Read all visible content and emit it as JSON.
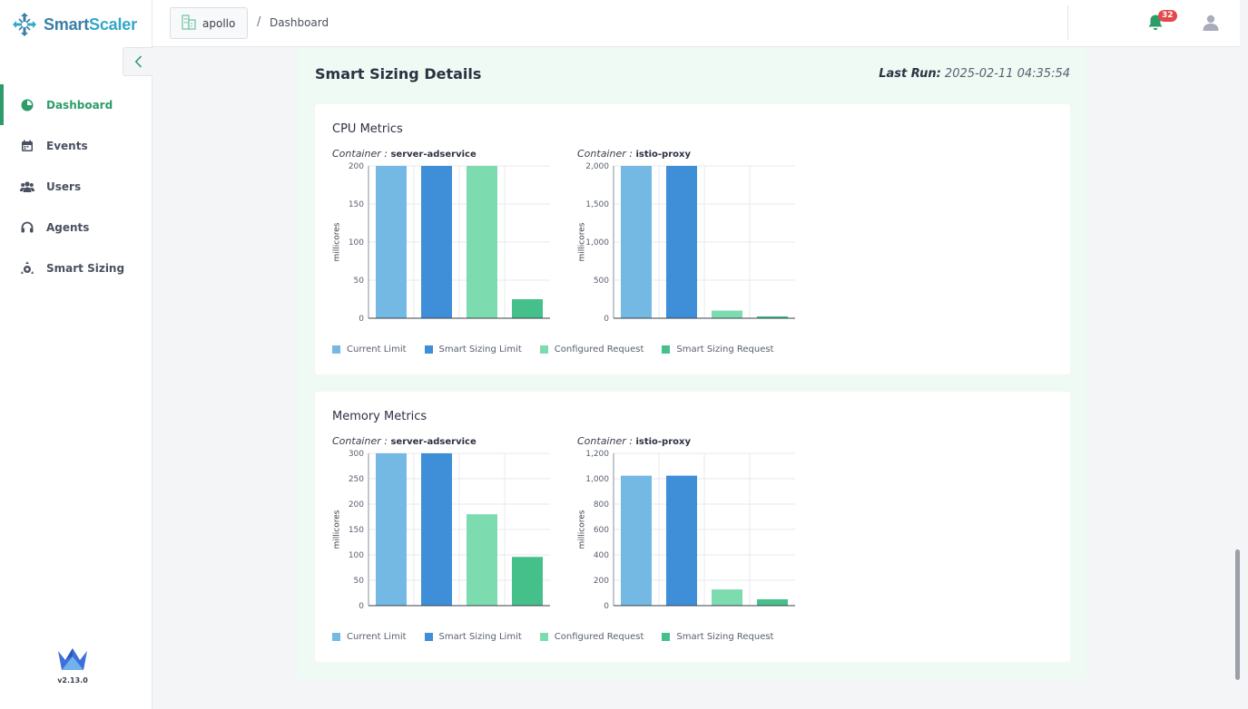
{
  "app": {
    "name_part1": "Smart",
    "name_part2": "Scaler",
    "version": "v2.13.0"
  },
  "sidebar": {
    "items": [
      {
        "label": "Dashboard",
        "icon": "pie-chart-icon",
        "active": true
      },
      {
        "label": "Events",
        "icon": "calendar-icon",
        "active": false
      },
      {
        "label": "Users",
        "icon": "users-icon",
        "active": false
      },
      {
        "label": "Agents",
        "icon": "headset-icon",
        "active": false
      },
      {
        "label": "Smart Sizing",
        "icon": "smart-sizing-icon",
        "active": false
      }
    ]
  },
  "header": {
    "tenant": "apollo",
    "separator": "/",
    "breadcrumb": "Dashboard",
    "notification_count": "32"
  },
  "details": {
    "title": "Smart Sizing Details",
    "last_run_label": "Last Run:",
    "last_run_value": " 2025-02-11 04:35:54"
  },
  "colors": {
    "current_limit": "#74b9e4",
    "smart_sizing_limit": "#3f8ed8",
    "configured_request": "#7ddbb0",
    "smart_sizing_request": "#45c08a",
    "accent": "#2d9c6a"
  },
  "legend": [
    "Current Limit",
    "Smart Sizing Limit",
    "Configured Request",
    "Smart Sizing Request"
  ],
  "cpu": {
    "title": "CPU Metrics",
    "container_label": "Container : ",
    "charts": [
      {
        "container": "server-adservice",
        "ylabel": "millicores"
      },
      {
        "container": "istio-proxy",
        "ylabel": "millicores"
      }
    ]
  },
  "memory": {
    "title": "Memory Metrics",
    "container_label": "Container : ",
    "charts": [
      {
        "container": "server-adservice",
        "ylabel": "millicores"
      },
      {
        "container": "istio-proxy",
        "ylabel": "millicores"
      }
    ]
  },
  "chart_data": [
    {
      "type": "bar",
      "title": "CPU Metrics",
      "container": "server-adservice",
      "ylabel": "millicores",
      "categories": [
        "Current Limit",
        "Smart Sizing Limit",
        "Configured Request",
        "Smart Sizing Request"
      ],
      "values": [
        200,
        200,
        200,
        25
      ],
      "ylim": [
        0,
        200
      ],
      "yticks": [
        "0",
        "50",
        "100",
        "150",
        "200"
      ],
      "grid": true
    },
    {
      "type": "bar",
      "title": "CPU Metrics",
      "container": "istio-proxy",
      "ylabel": "millicores",
      "categories": [
        "Current Limit",
        "Smart Sizing Limit",
        "Configured Request",
        "Smart Sizing Request"
      ],
      "values": [
        2000,
        2000,
        100,
        25
      ],
      "ylim": [
        0,
        2000
      ],
      "yticks": [
        "0",
        "500",
        "1,000",
        "1,500",
        "2,000"
      ],
      "grid": true
    },
    {
      "type": "bar",
      "title": "Memory Metrics",
      "container": "server-adservice",
      "ylabel": "millicores",
      "categories": [
        "Current Limit",
        "Smart Sizing Limit",
        "Configured Request",
        "Smart Sizing Request"
      ],
      "values": [
        300,
        300,
        180,
        96
      ],
      "ylim": [
        0,
        300
      ],
      "yticks": [
        "0",
        "50",
        "100",
        "150",
        "200",
        "250",
        "300"
      ],
      "grid": true
    },
    {
      "type": "bar",
      "title": "Memory Metrics",
      "container": "istio-proxy",
      "ylabel": "millicores",
      "categories": [
        "Current Limit",
        "Smart Sizing Limit",
        "Configured Request",
        "Smart Sizing Request"
      ],
      "values": [
        1024,
        1024,
        128,
        50
      ],
      "ylim": [
        0,
        1200
      ],
      "yticks": [
        "0",
        "200",
        "400",
        "600",
        "800",
        "1,000",
        "1,200"
      ],
      "grid": true
    }
  ]
}
